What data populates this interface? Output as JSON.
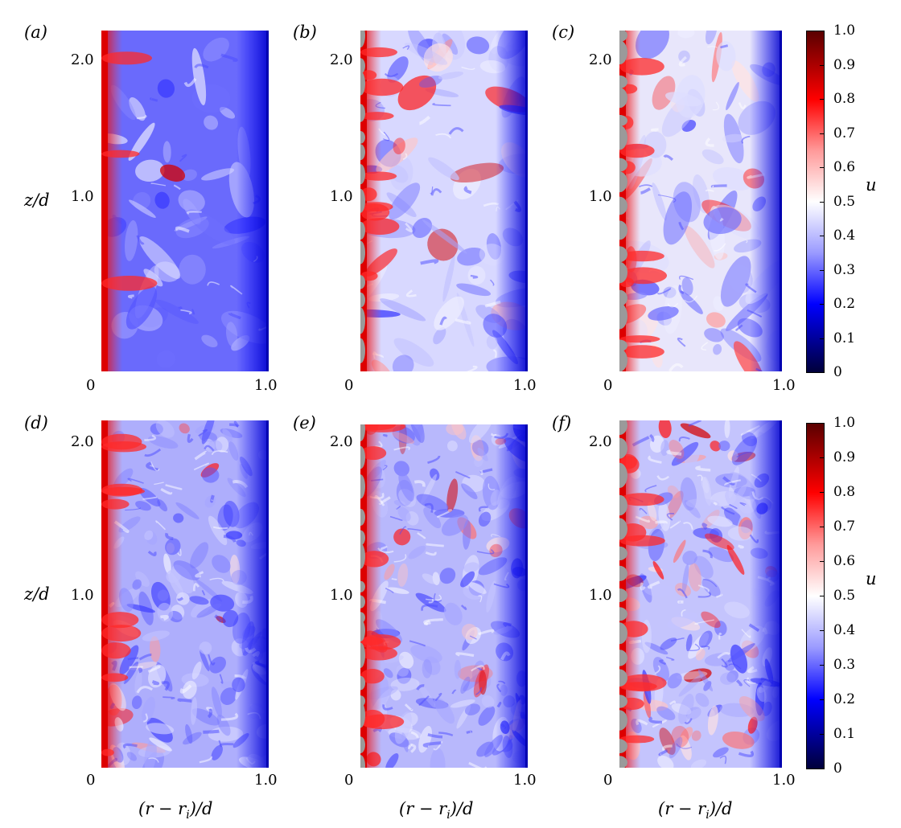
{
  "panels": [
    {
      "id": "a",
      "label": "(a)",
      "variant": 0
    },
    {
      "id": "b",
      "label": "(b)",
      "variant": 1
    },
    {
      "id": "c",
      "label": "(c)",
      "variant": 2
    },
    {
      "id": "d",
      "label": "(d)",
      "variant": 3
    },
    {
      "id": "e",
      "label": "(e)",
      "variant": 4
    },
    {
      "id": "f",
      "label": "(f)",
      "variant": 5
    }
  ],
  "axes": {
    "ylabel": "z/d",
    "xlabel": "(r − r",
    "xlabel_sub": "i",
    "xlabel_tail": ")/d",
    "yticks": [
      "2.0",
      "1.0"
    ],
    "xticks": [
      "0",
      "1.0"
    ]
  },
  "colorbar": {
    "label": "u",
    "ticks": [
      "1.0",
      "0.9",
      "0.8",
      "0.7",
      "0.6",
      "0.5",
      "0.4",
      "0.3",
      "0.2",
      "0.1",
      "0"
    ],
    "colors": {
      "low": "#00003a",
      "mid_low": "#0000ff",
      "mid": "#ffffff",
      "mid_high": "#ff0000",
      "high": "#5a0000"
    }
  }
}
